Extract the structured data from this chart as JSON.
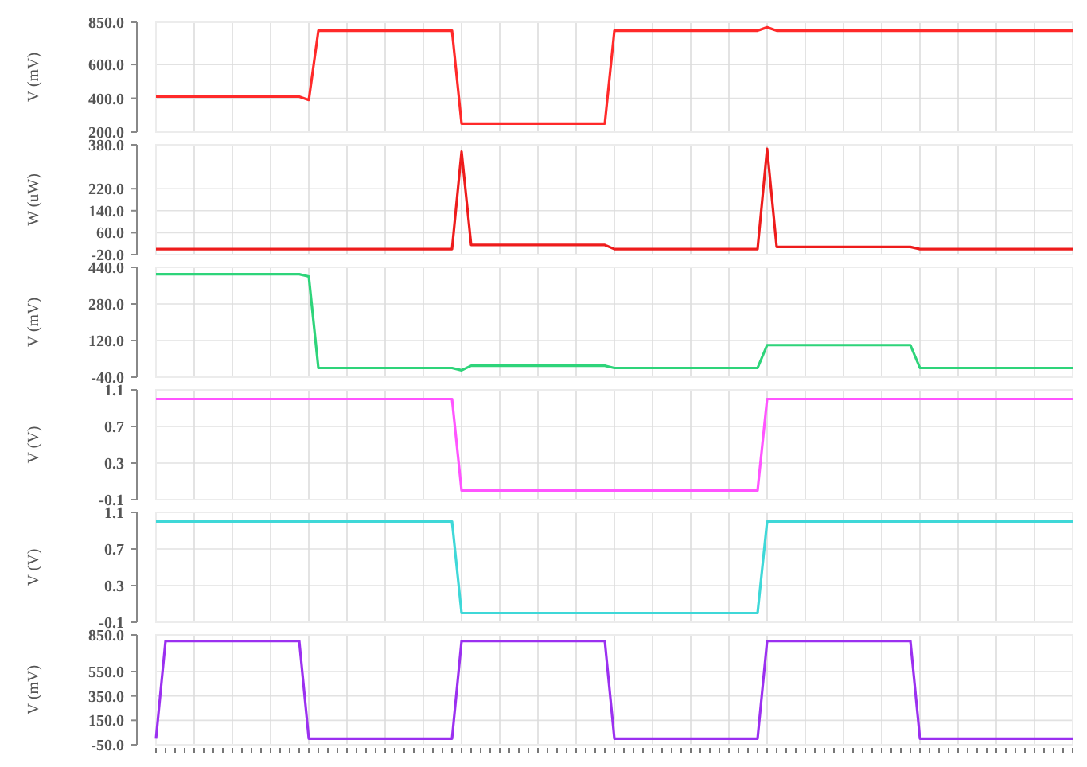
{
  "chart_data": [
    {
      "type": "line",
      "ylabel": "V (mV)",
      "ylim": [
        200,
        850
      ],
      "yticks": [
        {
          "value": 850,
          "label": "850.0"
        },
        {
          "value": 600,
          "label": "600.0"
        },
        {
          "value": 400,
          "label": "400.0"
        },
        {
          "value": 200,
          "label": "200.0"
        }
      ],
      "grid": true,
      "tick_labels": "y",
      "categories": [
        null,
        null,
        null,
        null,
        null,
        null,
        null,
        null,
        null,
        null,
        null,
        null,
        null,
        null,
        null,
        null,
        null,
        null,
        null,
        null,
        null,
        null,
        null,
        null,
        null,
        null,
        null,
        null,
        null,
        null,
        null,
        null,
        null,
        null,
        null,
        null,
        null,
        null,
        null,
        null,
        null,
        null,
        null,
        null,
        null,
        null,
        null,
        null,
        null,
        null,
        null,
        null,
        null,
        null,
        null,
        null,
        null,
        null,
        null,
        null,
        null,
        null,
        null,
        null,
        null,
        null,
        null,
        null,
        null,
        null,
        null,
        null,
        null,
        null,
        null,
        null,
        null,
        null,
        null,
        null,
        null,
        null,
        null,
        null,
        null,
        null,
        null,
        null,
        null,
        null,
        null,
        null,
        null,
        null,
        null,
        null,
        null
      ],
      "series": [
        {
          "color": "#ff2a2a",
          "values": [
            410,
            410,
            410,
            410,
            410,
            410,
            410,
            410,
            410,
            410,
            410,
            410,
            410,
            410,
            410,
            410,
            390,
            800,
            800,
            800,
            800,
            800,
            800,
            800,
            800,
            800,
            800,
            800,
            800,
            800,
            800,
            800,
            250,
            250,
            250,
            250,
            250,
            250,
            250,
            250,
            250,
            250,
            250,
            250,
            250,
            250,
            250,
            250,
            800,
            800,
            800,
            800,
            800,
            800,
            800,
            800,
            800,
            800,
            800,
            800,
            800,
            800,
            800,
            800,
            820,
            800,
            800,
            800,
            800,
            800,
            800,
            800,
            800,
            800,
            800,
            800,
            800,
            800,
            800,
            800,
            800,
            800,
            800,
            800,
            800,
            800,
            800,
            800,
            800,
            800,
            800,
            800,
            800,
            800,
            800,
            800,
            800
          ]
        }
      ]
    },
    {
      "type": "line",
      "ylabel": "W (uW)",
      "ylim": [
        -20,
        380
      ],
      "yticks": [
        {
          "value": 380,
          "label": "380.0"
        },
        {
          "value": 220,
          "label": "220.0"
        },
        {
          "value": 140,
          "label": "140.0"
        },
        {
          "value": 60,
          "label": "60.0"
        },
        {
          "value": -20,
          "label": "-20.0"
        }
      ],
      "grid": true,
      "tick_labels": "y",
      "categories": [
        null,
        null,
        null,
        null,
        null,
        null,
        null,
        null,
        null,
        null,
        null,
        null,
        null,
        null,
        null,
        null,
        null,
        null,
        null,
        null,
        null,
        null,
        null,
        null,
        null,
        null,
        null,
        null,
        null,
        null,
        null,
        null,
        null,
        null,
        null,
        null,
        null,
        null,
        null,
        null,
        null,
        null,
        null,
        null,
        null,
        null,
        null,
        null,
        null,
        null,
        null,
        null,
        null,
        null,
        null,
        null,
        null,
        null,
        null,
        null,
        null,
        null,
        null,
        null,
        null,
        null,
        null,
        null,
        null,
        null,
        null,
        null,
        null,
        null,
        null,
        null,
        null,
        null,
        null,
        null,
        null,
        null,
        null,
        null,
        null,
        null,
        null,
        null,
        null,
        null,
        null,
        null,
        null,
        null,
        null,
        null,
        null
      ],
      "series": [
        {
          "color": "#ee1c1c",
          "values": [
            0,
            0,
            0,
            0,
            0,
            0,
            0,
            0,
            0,
            0,
            0,
            0,
            0,
            0,
            0,
            0,
            0,
            0,
            0,
            0,
            0,
            0,
            0,
            0,
            0,
            0,
            0,
            0,
            0,
            0,
            0,
            0,
            355,
            15,
            15,
            15,
            15,
            15,
            15,
            15,
            15,
            15,
            15,
            15,
            15,
            15,
            15,
            15,
            0,
            0,
            0,
            0,
            0,
            0,
            0,
            0,
            0,
            0,
            0,
            0,
            0,
            0,
            0,
            0,
            365,
            8,
            8,
            8,
            8,
            8,
            8,
            8,
            8,
            8,
            8,
            8,
            8,
            8,
            8,
            8,
            0,
            0,
            0,
            0,
            0,
            0,
            0,
            0,
            0,
            0,
            0,
            0,
            0,
            0,
            0,
            0,
            0
          ]
        }
      ]
    },
    {
      "type": "line",
      "ylabel": "V (mV)",
      "ylim": [
        -40,
        440
      ],
      "yticks": [
        {
          "value": 440,
          "label": "440.0"
        },
        {
          "value": 280,
          "label": "280.0"
        },
        {
          "value": 120,
          "label": "120.0"
        },
        {
          "value": -40,
          "label": "-40.0"
        }
      ],
      "grid": true,
      "tick_labels": "y",
      "categories": [
        null,
        null,
        null,
        null,
        null,
        null,
        null,
        null,
        null,
        null,
        null,
        null,
        null,
        null,
        null,
        null,
        null,
        null,
        null,
        null,
        null,
        null,
        null,
        null,
        null,
        null,
        null,
        null,
        null,
        null,
        null,
        null,
        null,
        null,
        null,
        null,
        null,
        null,
        null,
        null,
        null,
        null,
        null,
        null,
        null,
        null,
        null,
        null,
        null,
        null,
        null,
        null,
        null,
        null,
        null,
        null,
        null,
        null,
        null,
        null,
        null,
        null,
        null,
        null,
        null,
        null,
        null,
        null,
        null,
        null,
        null,
        null,
        null,
        null,
        null,
        null,
        null,
        null,
        null,
        null,
        null,
        null,
        null,
        null,
        null,
        null,
        null,
        null,
        null,
        null,
        null,
        null,
        null,
        null,
        null,
        null,
        null
      ],
      "series": [
        {
          "color": "#2ed47a",
          "values": [
            410,
            410,
            410,
            410,
            410,
            410,
            410,
            410,
            410,
            410,
            410,
            410,
            410,
            410,
            410,
            410,
            400,
            0,
            0,
            0,
            0,
            0,
            0,
            0,
            0,
            0,
            0,
            0,
            0,
            0,
            0,
            0,
            -10,
            10,
            10,
            10,
            10,
            10,
            10,
            10,
            10,
            10,
            10,
            10,
            10,
            10,
            10,
            10,
            0,
            0,
            0,
            0,
            0,
            0,
            0,
            0,
            0,
            0,
            0,
            0,
            0,
            0,
            0,
            0,
            100,
            100,
            100,
            100,
            100,
            100,
            100,
            100,
            100,
            100,
            100,
            100,
            100,
            100,
            100,
            100,
            0,
            0,
            0,
            0,
            0,
            0,
            0,
            0,
            0,
            0,
            0,
            0,
            0,
            0,
            0,
            0,
            0
          ]
        }
      ]
    },
    {
      "type": "line",
      "ylabel": "V (V)",
      "ylim": [
        -0.1,
        1.1
      ],
      "yticks": [
        1.1,
        0.7,
        0.3,
        -0.1
      ],
      "grid": true,
      "tick_labels": "y",
      "categories": [
        null,
        null,
        null,
        null,
        null,
        null,
        null,
        null,
        null,
        null,
        null,
        null,
        null,
        null,
        null,
        null,
        null,
        null,
        null,
        null,
        null,
        null,
        null,
        null,
        null,
        null,
        null,
        null,
        null,
        null,
        null,
        null,
        null,
        null,
        null,
        null,
        null,
        null,
        null,
        null,
        null,
        null,
        null,
        null,
        null,
        null,
        null,
        null,
        null,
        null,
        null,
        null,
        null,
        null,
        null,
        null,
        null,
        null,
        null,
        null,
        null,
        null,
        null,
        null,
        null,
        null,
        null,
        null,
        null,
        null,
        null,
        null,
        null,
        null,
        null,
        null,
        null,
        null,
        null,
        null,
        null,
        null,
        null,
        null,
        null,
        null,
        null,
        null,
        null,
        null,
        null,
        null,
        null,
        null,
        null,
        null,
        null
      ],
      "series": [
        {
          "color": "#ff55ff",
          "values": [
            1,
            1,
            1,
            1,
            1,
            1,
            1,
            1,
            1,
            1,
            1,
            1,
            1,
            1,
            1,
            1,
            1,
            1,
            1,
            1,
            1,
            1,
            1,
            1,
            1,
            1,
            1,
            1,
            1,
            1,
            1,
            1,
            0,
            0,
            0,
            0,
            0,
            0,
            0,
            0,
            0,
            0,
            0,
            0,
            0,
            0,
            0,
            0,
            0,
            0,
            0,
            0,
            0,
            0,
            0,
            0,
            0,
            0,
            0,
            0,
            0,
            0,
            0,
            0,
            1,
            1,
            1,
            1,
            1,
            1,
            1,
            1,
            1,
            1,
            1,
            1,
            1,
            1,
            1,
            1,
            1,
            1,
            1,
            1,
            1,
            1,
            1,
            1,
            1,
            1,
            1,
            1,
            1,
            1,
            1,
            1,
            1
          ]
        }
      ]
    },
    {
      "type": "line",
      "ylabel": "V (V)",
      "ylim": [
        -0.1,
        1.1
      ],
      "yticks": [
        1.1,
        0.7,
        0.3,
        -0.1
      ],
      "grid": true,
      "tick_labels": "y",
      "categories": [
        null,
        null,
        null,
        null,
        null,
        null,
        null,
        null,
        null,
        null,
        null,
        null,
        null,
        null,
        null,
        null,
        null,
        null,
        null,
        null,
        null,
        null,
        null,
        null,
        null,
        null,
        null,
        null,
        null,
        null,
        null,
        null,
        null,
        null,
        null,
        null,
        null,
        null,
        null,
        null,
        null,
        null,
        null,
        null,
        null,
        null,
        null,
        null,
        null,
        null,
        null,
        null,
        null,
        null,
        null,
        null,
        null,
        null,
        null,
        null,
        null,
        null,
        null,
        null,
        null,
        null,
        null,
        null,
        null,
        null,
        null,
        null,
        null,
        null,
        null,
        null,
        null,
        null,
        null,
        null,
        null,
        null,
        null,
        null,
        null,
        null,
        null,
        null,
        null,
        null,
        null,
        null,
        null,
        null,
        null,
        null,
        null
      ],
      "series": [
        {
          "color": "#3fd8d8",
          "values": [
            1,
            1,
            1,
            1,
            1,
            1,
            1,
            1,
            1,
            1,
            1,
            1,
            1,
            1,
            1,
            1,
            1,
            1,
            1,
            1,
            1,
            1,
            1,
            1,
            1,
            1,
            1,
            1,
            1,
            1,
            1,
            1,
            0,
            0,
            0,
            0,
            0,
            0,
            0,
            0,
            0,
            0,
            0,
            0,
            0,
            0,
            0,
            0,
            0,
            0,
            0,
            0,
            0,
            0,
            0,
            0,
            0,
            0,
            0,
            0,
            0,
            0,
            0,
            0,
            1,
            1,
            1,
            1,
            1,
            1,
            1,
            1,
            1,
            1,
            1,
            1,
            1,
            1,
            1,
            1,
            1,
            1,
            1,
            1,
            1,
            1,
            1,
            1,
            1,
            1,
            1,
            1,
            1,
            1,
            1,
            1,
            1
          ]
        }
      ]
    },
    {
      "type": "line",
      "ylabel": "V (mV)",
      "ylim": [
        -50,
        850
      ],
      "yticks": [
        {
          "value": 850,
          "label": "850.0"
        },
        {
          "value": 550,
          "label": "550.0"
        },
        {
          "value": 350,
          "label": "350.0"
        },
        {
          "value": 150,
          "label": "150.0"
        },
        {
          "value": -50,
          "label": "-50.0"
        }
      ],
      "grid": true,
      "tick_labels": "y",
      "categories": [
        null,
        null,
        null,
        null,
        null,
        null,
        null,
        null,
        null,
        null,
        null,
        null,
        null,
        null,
        null,
        null,
        null,
        null,
        null,
        null,
        null,
        null,
        null,
        null,
        null,
        null,
        null,
        null,
        null,
        null,
        null,
        null,
        null,
        null,
        null,
        null,
        null,
        null,
        null,
        null,
        null,
        null,
        null,
        null,
        null,
        null,
        null,
        null,
        null,
        null,
        null,
        null,
        null,
        null,
        null,
        null,
        null,
        null,
        null,
        null,
        null,
        null,
        null,
        null,
        null,
        null,
        null,
        null,
        null,
        null,
        null,
        null,
        null,
        null,
        null,
        null,
        null,
        null,
        null,
        null,
        null,
        null,
        null,
        null,
        null,
        null,
        null,
        null,
        null,
        null,
        null,
        null,
        null,
        null,
        null,
        null,
        null
      ],
      "series": [
        {
          "color": "#9b30f0",
          "values": [
            0,
            800,
            800,
            800,
            800,
            800,
            800,
            800,
            800,
            800,
            800,
            800,
            800,
            800,
            800,
            800,
            0,
            0,
            0,
            0,
            0,
            0,
            0,
            0,
            0,
            0,
            0,
            0,
            0,
            0,
            0,
            0,
            800,
            800,
            800,
            800,
            800,
            800,
            800,
            800,
            800,
            800,
            800,
            800,
            800,
            800,
            800,
            800,
            0,
            0,
            0,
            0,
            0,
            0,
            0,
            0,
            0,
            0,
            0,
            0,
            0,
            0,
            0,
            0,
            800,
            800,
            800,
            800,
            800,
            800,
            800,
            800,
            800,
            800,
            800,
            800,
            800,
            800,
            800,
            800,
            0,
            0,
            0,
            0,
            0,
            0,
            0,
            0,
            0,
            0,
            0,
            0,
            0,
            0,
            0,
            0,
            0
          ]
        }
      ]
    }
  ]
}
